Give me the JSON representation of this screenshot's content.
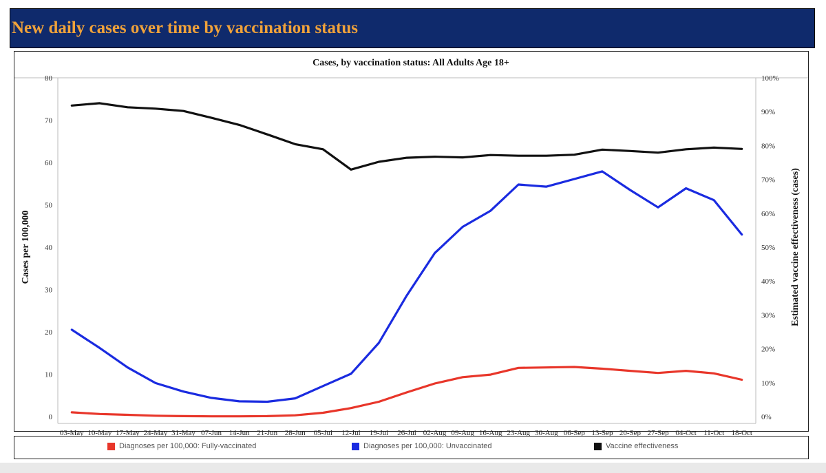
{
  "header": {
    "title": "New daily cases over time by vaccination status"
  },
  "colors": {
    "banner_bg": "#0f2a6c",
    "title_color": "#f0a23a",
    "fully_vaccinated": "#e8362a",
    "unvaccinated": "#1a2be0",
    "effectiveness": "#111111"
  },
  "chart_data": {
    "type": "line",
    "title": "Cases, by vaccination status: All Adults Age 18+",
    "xlabel": "",
    "ylabel": "Cases per 100,000",
    "y2label": "Estimated vaccine effectiveness (cases)",
    "categories": [
      "03-May",
      "10-May",
      "17-May",
      "24-May",
      "31-May",
      "07-Jun",
      "14-Jun",
      "21-Jun",
      "28-Jun",
      "05-Jul",
      "12-Jul",
      "19-Jul",
      "26-Jul",
      "02-Aug",
      "09-Aug",
      "16-Aug",
      "23-Aug",
      "30-Aug",
      "06-Sep",
      "13-Sep",
      "20-Sep",
      "27-Sep",
      "04-Oct",
      "11-Oct",
      "18-Oct"
    ],
    "ylim": [
      0,
      80
    ],
    "yticks": [
      "0",
      "10",
      "20",
      "30",
      "40",
      "50",
      "60",
      "70",
      "80"
    ],
    "y2lim": [
      0,
      100
    ],
    "y2ticks": [
      "0%",
      "10%",
      "20%",
      "30%",
      "40%",
      "50%",
      "60%",
      "70%",
      "80%",
      "90%",
      "100%"
    ],
    "grid": false,
    "legend_position": "bottom",
    "series": [
      {
        "name": "Diagnoses per 100,000: Fully-vaccinated",
        "axis": "left",
        "color": "#e8362a",
        "values": [
          1.0,
          0.6,
          0.4,
          0.2,
          0.1,
          0.05,
          0.05,
          0.1,
          0.3,
          0.9,
          2.0,
          3.5,
          5.7,
          7.8,
          9.3,
          9.9,
          11.5,
          11.6,
          11.7,
          11.3,
          10.8,
          10.3,
          10.8,
          10.2,
          8.7
        ]
      },
      {
        "name": "Diagnoses per 100,000: Unvaccinated",
        "axis": "left",
        "color": "#1a2be0",
        "values": [
          20.5,
          16.2,
          11.6,
          7.9,
          5.9,
          4.4,
          3.6,
          3.5,
          4.3,
          7.2,
          10.1,
          17.4,
          28.6,
          38.6,
          44.8,
          48.6,
          54.8,
          54.3,
          56.1,
          57.9,
          53.5,
          49.4,
          53.9,
          51.1,
          43.0
        ]
      },
      {
        "name": "Vaccine effectiveness",
        "axis": "right",
        "color": "#111111",
        "values": [
          91.8,
          92.5,
          91.3,
          90.9,
          90.2,
          88.2,
          86.1,
          83.3,
          80.4,
          78.9,
          72.9,
          75.2,
          76.4,
          76.7,
          76.5,
          77.2,
          77.0,
          77.0,
          77.3,
          78.8,
          78.4,
          77.9,
          78.9,
          79.4,
          79.0
        ]
      }
    ]
  }
}
